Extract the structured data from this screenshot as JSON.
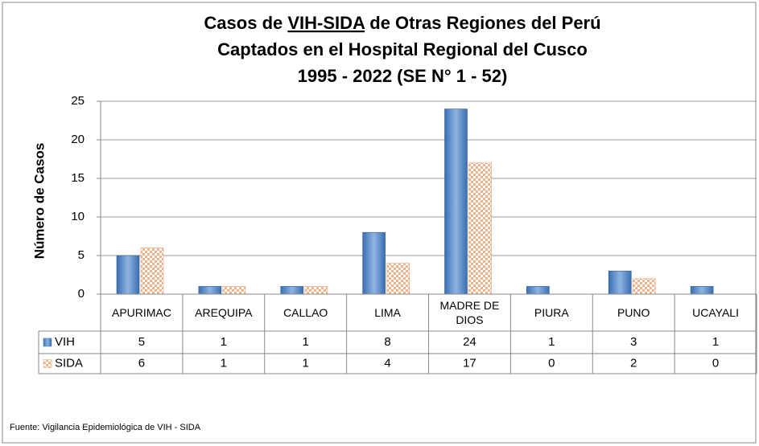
{
  "chart_data": {
    "type": "bar",
    "title": [
      "Casos de",
      "VIH-SIDA",
      "de Otras Regiones del Perú",
      "Captados en el Hospital Regional del Cusco",
      "1995 - 2022 (SE N° 1 - 52)"
    ],
    "y_label": "Número de Casos",
    "categories": [
      "APURIMAC",
      "AREQUIPA",
      "CALLAO",
      "LIMA",
      "MADRE DE DIOS",
      "PIURA",
      "PUNO",
      "UCAYALI"
    ],
    "series": [
      {
        "name": "VIH",
        "color": "#4f81bd",
        "values": [
          5,
          1,
          1,
          8,
          24,
          1,
          3,
          1
        ]
      },
      {
        "name": "SIDA",
        "color": "#f2b38a",
        "values": [
          6,
          1,
          1,
          4,
          17,
          0,
          2,
          0
        ]
      }
    ],
    "ylim": [
      0,
      25
    ],
    "yticks": [
      0,
      5,
      10,
      15,
      20,
      25
    ],
    "grid": true,
    "source": "Fuente: Vigilancia  Epidemiológica  de VIH - SIDA"
  }
}
